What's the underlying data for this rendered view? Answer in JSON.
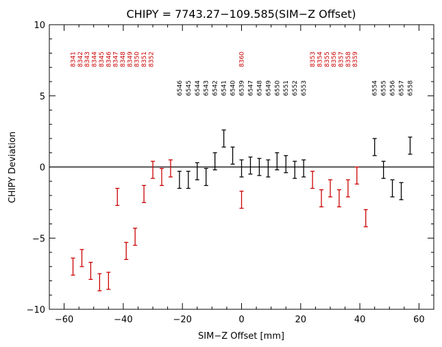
{
  "chart_data": {
    "type": "scatter",
    "title": "CHIPY = 7743.27−109.585(SIM−Z Offset)",
    "xlabel": "SIM−Z Offset [mm]",
    "ylabel": "CHIPY Deviation",
    "xlim": [
      -65,
      65
    ],
    "ylim": [
      -10,
      10
    ],
    "xticks": [
      -60,
      -40,
      -20,
      0,
      20,
      40,
      60
    ],
    "yticks": [
      -10,
      -5,
      0,
      5,
      10
    ],
    "reference_line_y": 0,
    "grid": false,
    "legend": "none",
    "series": [
      {
        "color": "#cc0000",
        "points": [
          {
            "x": -57,
            "y": -7.0,
            "err": 0.6
          },
          {
            "x": -54,
            "y": -6.4,
            "err": 0.6
          },
          {
            "x": -51,
            "y": -7.3,
            "err": 0.6
          },
          {
            "x": -48,
            "y": -8.1,
            "err": 0.6
          },
          {
            "x": -45,
            "y": -8.0,
            "err": 0.6
          },
          {
            "x": -42,
            "y": -2.1,
            "err": 0.6
          },
          {
            "x": -39,
            "y": -5.9,
            "err": 0.6
          },
          {
            "x": -36,
            "y": -4.9,
            "err": 0.6
          },
          {
            "x": -33,
            "y": -1.9,
            "err": 0.6
          },
          {
            "x": -30,
            "y": -0.2,
            "err": 0.6
          },
          {
            "x": -27,
            "y": -0.7,
            "err": 0.6
          },
          {
            "x": -24,
            "y": -0.1,
            "err": 0.6
          },
          {
            "x": 0,
            "y": -2.3,
            "err": 0.6
          },
          {
            "x": 24,
            "y": -0.9,
            "err": 0.6
          },
          {
            "x": 27,
            "y": -2.2,
            "err": 0.6
          },
          {
            "x": 30,
            "y": -1.5,
            "err": 0.6
          },
          {
            "x": 33,
            "y": -2.2,
            "err": 0.6
          },
          {
            "x": 36,
            "y": -1.5,
            "err": 0.6
          },
          {
            "x": 39,
            "y": -0.6,
            "err": 0.6
          },
          {
            "x": 42,
            "y": -3.6,
            "err": 0.6
          }
        ]
      },
      {
        "color": "#000000",
        "points": [
          {
            "x": -21,
            "y": -0.9,
            "err": 0.6
          },
          {
            "x": -18,
            "y": -0.9,
            "err": 0.6
          },
          {
            "x": -15,
            "y": -0.3,
            "err": 0.6
          },
          {
            "x": -12,
            "y": -0.7,
            "err": 0.6
          },
          {
            "x": -9,
            "y": 0.4,
            "err": 0.6
          },
          {
            "x": -6,
            "y": 2.0,
            "err": 0.6
          },
          {
            "x": -3,
            "y": 0.8,
            "err": 0.6
          },
          {
            "x": 0,
            "y": -0.1,
            "err": 0.6
          },
          {
            "x": 3,
            "y": 0.1,
            "err": 0.6
          },
          {
            "x": 6,
            "y": 0.0,
            "err": 0.6
          },
          {
            "x": 9,
            "y": -0.1,
            "err": 0.6
          },
          {
            "x": 12,
            "y": 0.4,
            "err": 0.6
          },
          {
            "x": 15,
            "y": 0.2,
            "err": 0.6
          },
          {
            "x": 18,
            "y": -0.2,
            "err": 0.6
          },
          {
            "x": 21,
            "y": -0.1,
            "err": 0.6
          },
          {
            "x": 45,
            "y": 1.4,
            "err": 0.6
          },
          {
            "x": 48,
            "y": -0.2,
            "err": 0.6
          },
          {
            "x": 51,
            "y": -1.5,
            "err": 0.6
          },
          {
            "x": 54,
            "y": -1.7,
            "err": 0.6
          },
          {
            "x": 57,
            "y": 1.5,
            "err": 0.6
          }
        ]
      }
    ],
    "annotations": [
      {
        "text": "8341",
        "x": -57,
        "color": "#cc0000"
      },
      {
        "text": "8342",
        "x": -54.6,
        "color": "#cc0000"
      },
      {
        "text": "8343",
        "x": -52.2,
        "color": "#cc0000"
      },
      {
        "text": "8344",
        "x": -49.8,
        "color": "#cc0000"
      },
      {
        "text": "8345",
        "x": -47.4,
        "color": "#cc0000"
      },
      {
        "text": "8346",
        "x": -45,
        "color": "#cc0000"
      },
      {
        "text": "8347",
        "x": -42.6,
        "color": "#cc0000"
      },
      {
        "text": "8348",
        "x": -40.2,
        "color": "#cc0000"
      },
      {
        "text": "8349",
        "x": -37.8,
        "color": "#cc0000"
      },
      {
        "text": "8350",
        "x": -35.4,
        "color": "#cc0000"
      },
      {
        "text": "8351",
        "x": -33,
        "color": "#cc0000"
      },
      {
        "text": "8352",
        "x": -30.6,
        "color": "#cc0000"
      },
      {
        "text": "8360",
        "x": 0,
        "color": "#cc0000"
      },
      {
        "text": "8353",
        "x": 24,
        "color": "#cc0000"
      },
      {
        "text": "8354",
        "x": 26.4,
        "color": "#cc0000"
      },
      {
        "text": "8355",
        "x": 28.8,
        "color": "#cc0000"
      },
      {
        "text": "8356",
        "x": 31.2,
        "color": "#cc0000"
      },
      {
        "text": "8357",
        "x": 33.6,
        "color": "#cc0000"
      },
      {
        "text": "8358",
        "x": 36,
        "color": "#cc0000"
      },
      {
        "text": "8359",
        "x": 38.4,
        "color": "#cc0000"
      },
      {
        "text": "6546",
        "x": -21,
        "color": "#000000"
      },
      {
        "text": "6545",
        "x": -18,
        "color": "#000000"
      },
      {
        "text": "6544",
        "x": -15,
        "color": "#000000"
      },
      {
        "text": "6543",
        "x": -12,
        "color": "#000000"
      },
      {
        "text": "6542",
        "x": -9,
        "color": "#000000"
      },
      {
        "text": "6541",
        "x": -6,
        "color": "#000000"
      },
      {
        "text": "6540",
        "x": -3,
        "color": "#000000"
      },
      {
        "text": "6539",
        "x": 0,
        "color": "#000000"
      },
      {
        "text": "6547",
        "x": 3,
        "color": "#000000"
      },
      {
        "text": "6548",
        "x": 6,
        "color": "#000000"
      },
      {
        "text": "6549",
        "x": 9,
        "color": "#000000"
      },
      {
        "text": "6550",
        "x": 12,
        "color": "#000000"
      },
      {
        "text": "6551",
        "x": 15,
        "color": "#000000"
      },
      {
        "text": "6552",
        "x": 18,
        "color": "#000000"
      },
      {
        "text": "6553",
        "x": 21,
        "color": "#000000"
      },
      {
        "text": "6554",
        "x": 45,
        "color": "#000000"
      },
      {
        "text": "6555",
        "x": 48,
        "color": "#000000"
      },
      {
        "text": "6556",
        "x": 51,
        "color": "#000000"
      },
      {
        "text": "6557",
        "x": 54,
        "color": "#000000"
      },
      {
        "text": "6558",
        "x": 57,
        "color": "#000000"
      }
    ]
  }
}
